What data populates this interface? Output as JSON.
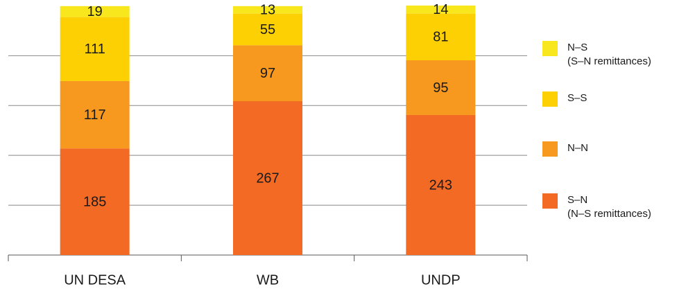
{
  "chart_data": {
    "type": "stacked_bar",
    "categories": [
      "UN DESA",
      "WB",
      "UNDP"
    ],
    "series": [
      {
        "name": "S–N",
        "sublabel": "(N–S remittances)",
        "color": "#f26a24",
        "values": [
          185,
          267,
          243
        ]
      },
      {
        "name": "N–N",
        "color": "#f7981f",
        "values": [
          117,
          97,
          95
        ]
      },
      {
        "name": "S–S",
        "color": "#fdd003",
        "values": [
          111,
          55,
          81
        ]
      },
      {
        "name": "N–S",
        "sublabel": "(S–N remittances)",
        "color": "#f8e71c",
        "values": [
          19,
          13,
          14
        ]
      }
    ],
    "ylim": [
      0,
      433
    ],
    "yticks": [
      86.5,
      173,
      259.5,
      346
    ],
    "grid": true
  }
}
